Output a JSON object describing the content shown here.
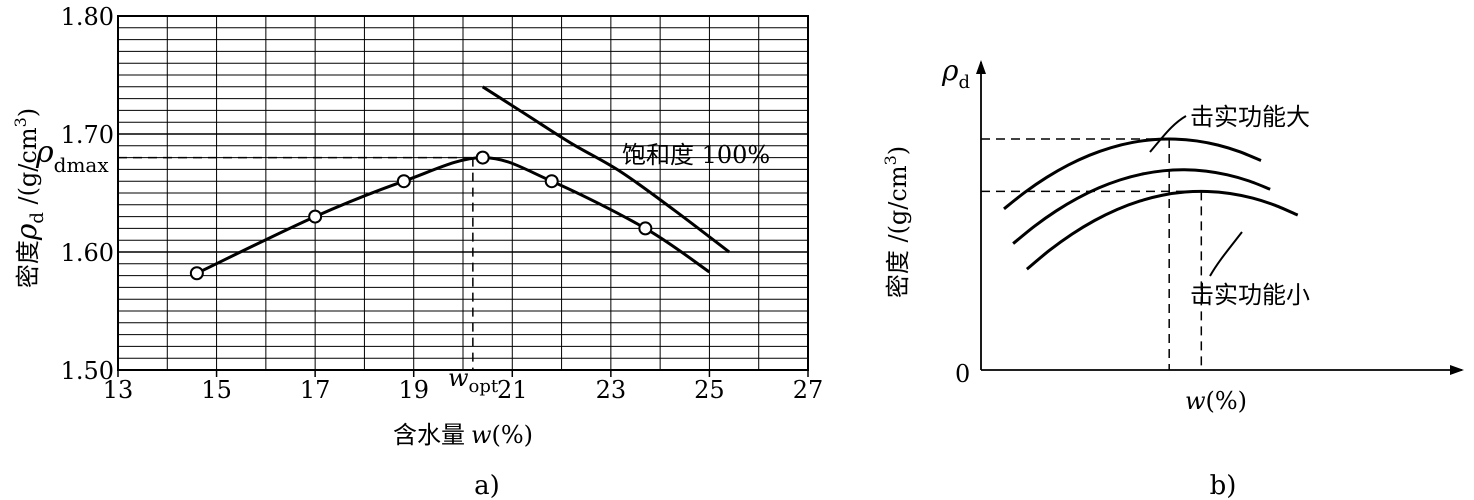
{
  "chart_data": [
    {
      "type": "line",
      "caption": "a)",
      "ylabel_prefix": "密度",
      "ylabel_symbol": "ρ",
      "ylabel_sub": "d",
      "ylabel_unit": " /(g/cm",
      "ylabel_exp": "3",
      "ylabel_close": ")",
      "xlabel_prefix": "含水量",
      "xlabel_symbol": "w",
      "xlabel_unit": "(%)",
      "xlim": [
        13,
        27
      ],
      "ylim": [
        1.5,
        1.8
      ],
      "grid": true,
      "x_ticks": [
        13,
        15,
        17,
        19,
        21,
        23,
        25,
        27
      ],
      "x_tick_labels": [
        "13",
        "15",
        "17",
        "19",
        "21",
        "23",
        "25",
        "27"
      ],
      "y_ticks": [
        1.5,
        1.6,
        1.7,
        1.8
      ],
      "y_tick_labels": [
        "1.50",
        "1.60",
        "1.70",
        "1.80"
      ],
      "series": [
        {
          "points": [
            {
              "x": 14.6,
              "y": 1.582
            },
            {
              "x": 17.0,
              "y": 1.63
            },
            {
              "x": 18.8,
              "y": 1.66
            },
            {
              "x": 20.4,
              "y": 1.68
            },
            {
              "x": 21.8,
              "y": 1.66
            },
            {
              "x": 23.7,
              "y": 1.62
            }
          ],
          "curve_ends": [
            {
              "x": 14.6,
              "y": 1.582
            },
            {
              "x": 25.0,
              "y": 1.583
            }
          ]
        },
        {
          "name": "饱和度 100%",
          "line": [
            {
              "x": 20.4,
              "y": 1.74
            },
            {
              "x": 21.3,
              "y": 1.716
            },
            {
              "x": 22.2,
              "y": 1.692
            },
            {
              "x": 23.2,
              "y": 1.668
            },
            {
              "x": 24.3,
              "y": 1.635
            },
            {
              "x": 25.4,
              "y": 1.6
            }
          ]
        }
      ],
      "annotations": {
        "rho_dmax_symbol": "ρ",
        "rho_dmax_sub": "dmax",
        "rho_dmax_value": 1.68,
        "w_opt_symbol": "w",
        "w_opt_sub": "opt",
        "w_opt_value": 20.2,
        "saturation_label": "饱和度 100%"
      }
    },
    {
      "type": "line",
      "caption": "b)",
      "ylabel_prefix": "密度",
      "ylabel_unit": " /(g/cm",
      "ylabel_exp": "3",
      "ylabel_close": ")",
      "y_axis_symbol": "ρ",
      "y_axis_sub": "d",
      "xlabel_symbol": "w",
      "xlabel_unit": "(%)",
      "origin_label": "0",
      "series": [
        {
          "name": "击实功能大",
          "peak_x": 0.41,
          "peak_y": 0.75
        },
        {
          "name": "击实功能小",
          "peak_x": 0.48,
          "peak_y": 0.58
        }
      ]
    }
  ]
}
